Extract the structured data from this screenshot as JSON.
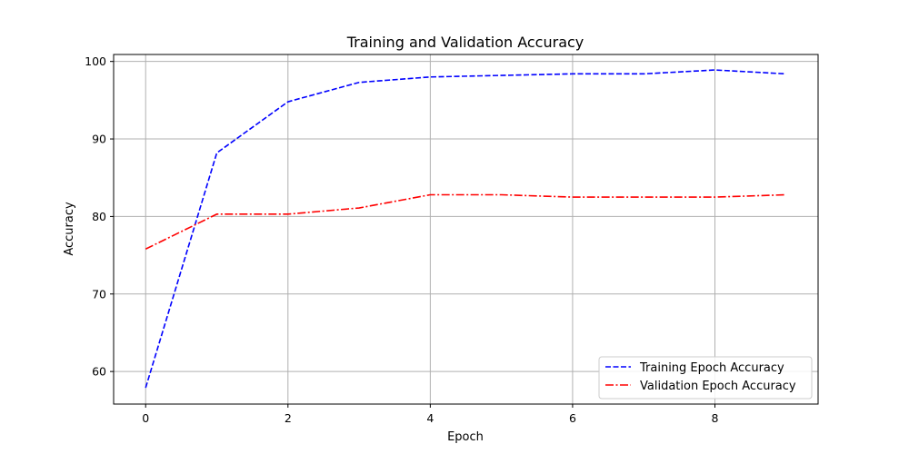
{
  "chart_data": {
    "type": "line",
    "title": "Training and Validation Accuracy",
    "xlabel": "Epoch",
    "ylabel": "Accuracy",
    "xlim": [
      -0.45,
      9.45
    ],
    "ylim": [
      55.8,
      100.9
    ],
    "xticks": [
      0,
      2,
      4,
      6,
      8
    ],
    "yticks": [
      60,
      70,
      80,
      90,
      100
    ],
    "grid": true,
    "legend_position": "lower-right",
    "x": [
      0,
      1,
      2,
      3,
      4,
      5,
      6,
      7,
      8,
      9
    ],
    "series": [
      {
        "name": "Training Epoch Accuracy",
        "color": "#0000ff",
        "line_style": "dashed",
        "values": [
          57.9,
          88.2,
          94.8,
          97.3,
          98.0,
          98.2,
          98.4,
          98.4,
          98.9,
          98.4
        ]
      },
      {
        "name": "Validation Epoch Accuracy",
        "color": "#ff0000",
        "line_style": "dashdot",
        "values": [
          75.8,
          80.3,
          80.3,
          81.1,
          82.8,
          82.8,
          82.5,
          82.5,
          82.5,
          82.8
        ]
      }
    ]
  }
}
